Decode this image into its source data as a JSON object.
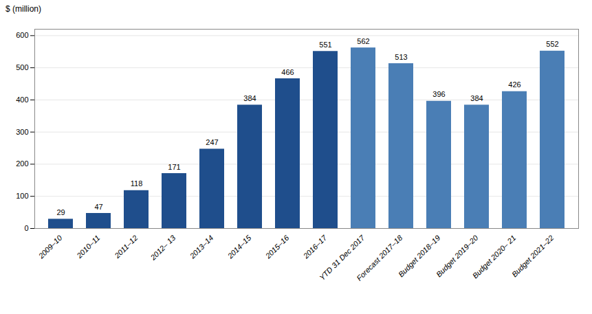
{
  "chart_data": {
    "type": "bar",
    "categories": [
      "2009–10",
      "2010–11",
      "2011–12",
      "2012– 13",
      "2013–14",
      "2014–15",
      "2015–16",
      "2016–17",
      "YTD 31 Dec 2017",
      "Forecast 2017–18",
      "Budget 2018–19",
      "Budget 2019–20",
      "Budget 2020– 21",
      "Budget 2021–22"
    ],
    "values": [
      29,
      47,
      118,
      171,
      247,
      384,
      466,
      551,
      562,
      513,
      396,
      384,
      426,
      552
    ],
    "colors": [
      "#1f4e8c",
      "#1f4e8c",
      "#1f4e8c",
      "#1f4e8c",
      "#1f4e8c",
      "#1f4e8c",
      "#1f4e8c",
      "#1f4e8c",
      "#4a7eb5",
      "#4a7eb5",
      "#4a7eb5",
      "#4a7eb5",
      "#4a7eb5",
      "#4a7eb5"
    ],
    "ylabel": "$ (million)",
    "ylim": [
      0,
      620
    ],
    "yticks": [
      0,
      100,
      200,
      300,
      400,
      500,
      600
    ],
    "grid": true,
    "data_labels": true
  }
}
